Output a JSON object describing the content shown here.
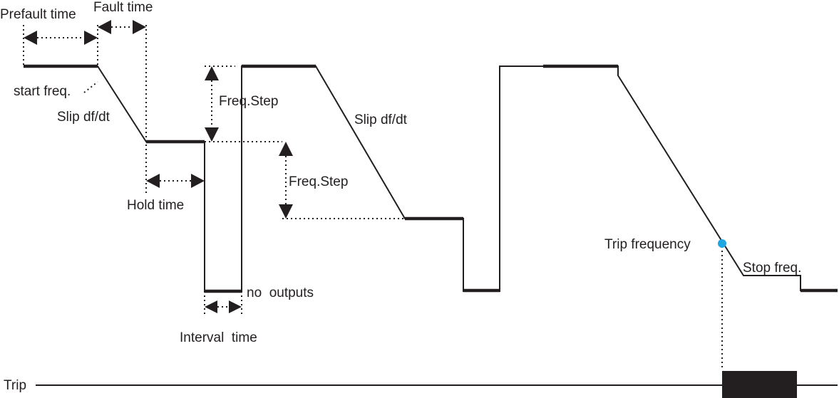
{
  "labels": {
    "prefault_time": "Prefault time",
    "fault_time": "Fault time",
    "start_freq": "start freq.",
    "slip_1": "Slip df/dt",
    "slip_2": "Slip df/dt",
    "freq_step_1": "Freq.Step",
    "freq_step_2": "Freq.Step",
    "hold_time": "Hold time",
    "no_outputs": "no  outputs",
    "interval_time": "Interval  time",
    "trip_frequency": "Trip frequency",
    "stop_freq": "Stop freq.",
    "trip": "Trip"
  },
  "colors": {
    "line": "#231f20",
    "trip_marker": "#1ea7e1",
    "background": "#ffffff"
  }
}
